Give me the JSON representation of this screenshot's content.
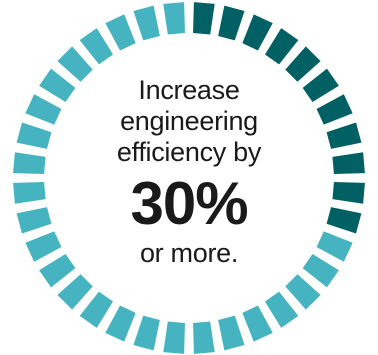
{
  "progress": {
    "value_percent": 30,
    "total_segments": 36,
    "highlighted_segments": 11
  },
  "text": {
    "line1": "Increase",
    "line2": "engineering",
    "line3": "efficiency by",
    "highlight": "30%",
    "line4": "or more."
  },
  "colors": {
    "highlight": "#006064",
    "base": "#45b4c0",
    "text": "#1a1a1a"
  }
}
